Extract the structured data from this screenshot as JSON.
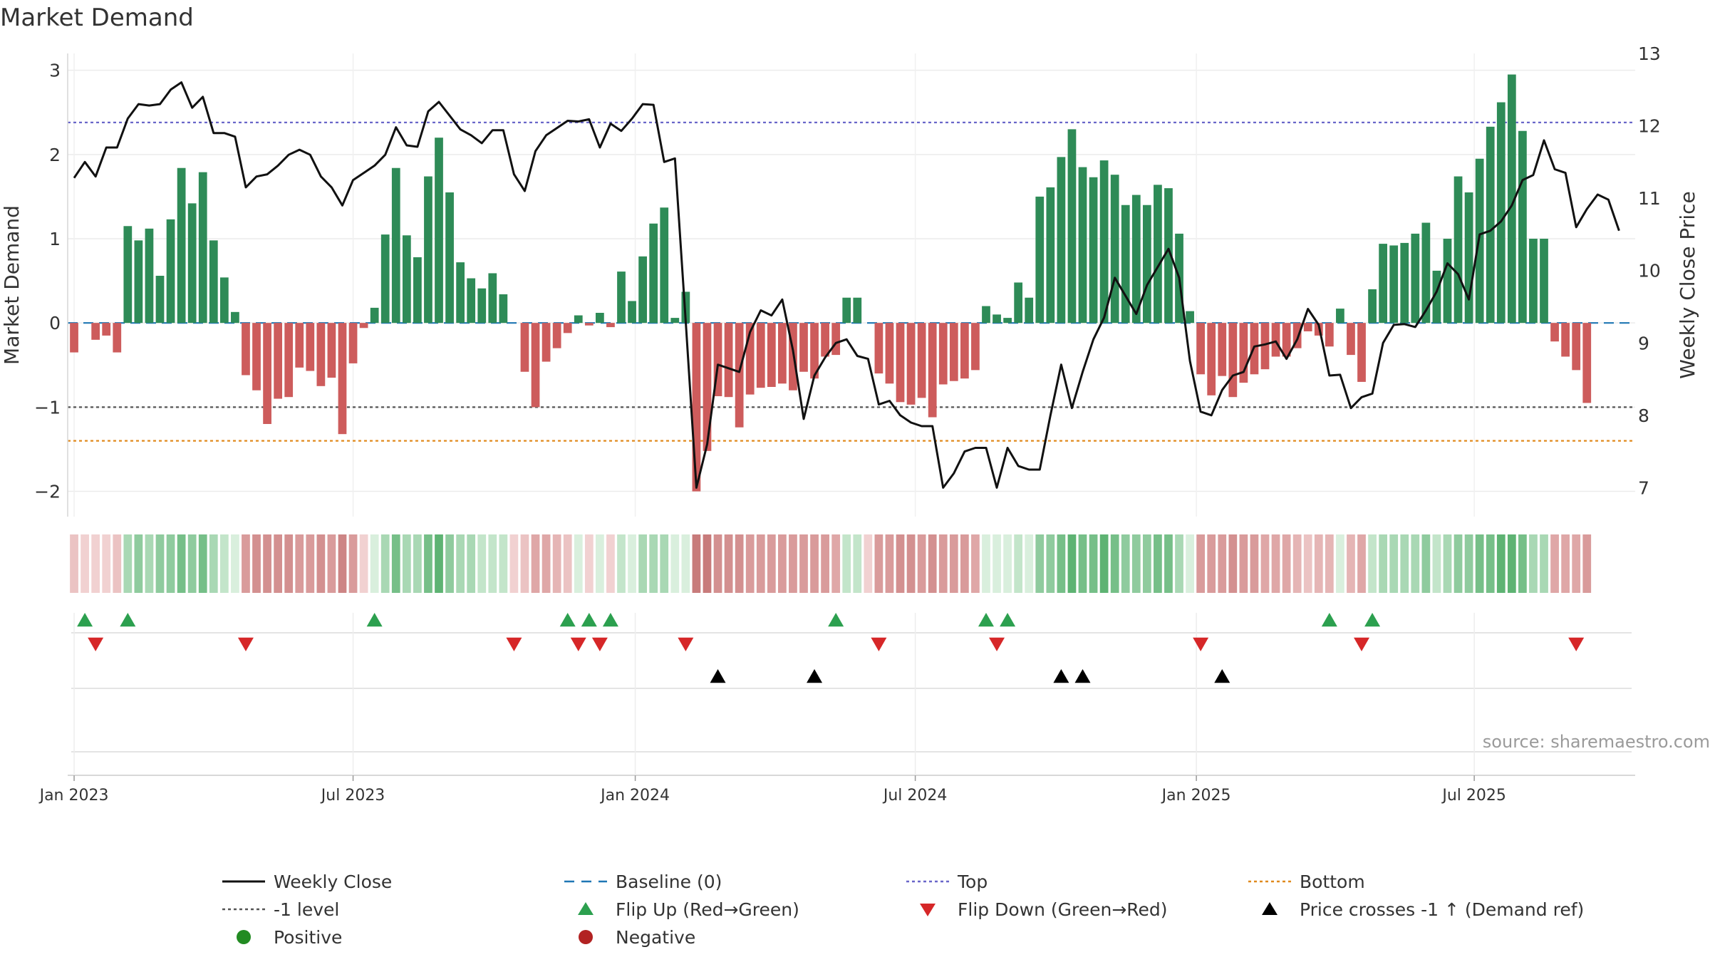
{
  "chart_data": {
    "type": "bar",
    "title": "Market Demand",
    "ylabel": "Market Demand",
    "y2label": "Weekly Close Price",
    "ylim": [
      -2.3,
      3.2
    ],
    "y2lim": [
      6.6,
      13.0
    ],
    "yticks": [
      -2,
      -1,
      0,
      1,
      2,
      3
    ],
    "y2ticks": [
      7,
      8,
      9,
      10,
      11,
      12,
      13
    ],
    "yticklabels": [
      "−2",
      "−1",
      "0",
      "1",
      "2",
      "3"
    ],
    "y2ticklabels": [
      "7",
      "8",
      "9",
      "10",
      "11",
      "12",
      "13"
    ],
    "x_range": [
      -0.6,
      145.5
    ],
    "xticks": [
      {
        "label": "Jan 2023",
        "week": 0
      },
      {
        "label": "Jul 2023",
        "week": 26
      },
      {
        "label": "Jan 2024",
        "week": 52.3
      },
      {
        "label": "Jul 2024",
        "week": 78.4
      },
      {
        "label": "Jan 2025",
        "week": 104.6
      },
      {
        "label": "Jul 2025",
        "week": 130.5
      }
    ],
    "reference_lines": [
      {
        "name": "Baseline (0)",
        "axis": "left",
        "value": 0,
        "color": "#1f77b4",
        "style": "dash"
      },
      {
        "name": "Top",
        "axis": "left",
        "value": 2.38,
        "color": "#6a67c9",
        "style": "dot"
      },
      {
        "name": "-1 level",
        "axis": "left",
        "value": -1,
        "color": "#555555",
        "style": "dot"
      },
      {
        "name": "Bottom",
        "axis": "left",
        "value": -1.4,
        "color": "#e08a1e",
        "style": "dot"
      }
    ],
    "series": [
      {
        "name": "Market Demand",
        "type": "bar",
        "axis": "left",
        "values": [
          -0.35,
          0.0,
          -0.2,
          -0.15,
          -0.35,
          1.15,
          0.98,
          1.12,
          0.56,
          1.23,
          1.84,
          1.42,
          1.79,
          0.98,
          0.54,
          0.13,
          -0.62,
          -0.8,
          -1.2,
          -0.9,
          -0.88,
          -0.53,
          -0.57,
          -0.75,
          -0.65,
          -1.32,
          -0.48,
          -0.06,
          0.18,
          1.05,
          1.84,
          1.04,
          0.78,
          1.74,
          2.2,
          1.55,
          0.72,
          0.53,
          0.41,
          0.59,
          0.34,
          0.0,
          -0.58,
          -1.0,
          -0.46,
          -0.3,
          -0.12,
          0.09,
          -0.03,
          0.12,
          -0.05,
          0.61,
          0.26,
          0.79,
          1.18,
          1.37,
          0.06,
          0.37,
          -2.0,
          -1.52,
          -0.87,
          -0.88,
          -1.24,
          -0.85,
          -0.77,
          -0.76,
          -0.72,
          -0.8,
          -0.58,
          -0.66,
          -0.4,
          -0.38,
          0.3,
          0.3,
          0.0,
          -0.6,
          -0.72,
          -0.94,
          -0.97,
          -0.89,
          -1.12,
          -0.73,
          -0.69,
          -0.66,
          -0.56,
          0.2,
          0.1,
          0.06,
          0.48,
          0.3,
          1.5,
          1.61,
          1.97,
          2.3,
          1.85,
          1.73,
          1.93,
          1.76,
          1.4,
          1.52,
          1.4,
          1.64,
          1.6,
          1.06,
          0.14,
          -0.61,
          -0.86,
          -0.63,
          -0.88,
          -0.71,
          -0.61,
          -0.55,
          -0.4,
          -0.4,
          -0.3,
          -0.1,
          -0.15,
          -0.28,
          0.17,
          -0.38,
          -0.7,
          0.4,
          0.94,
          0.92,
          0.95,
          1.06,
          1.19,
          0.62,
          1.0,
          1.74,
          1.55,
          1.95,
          2.33,
          2.62,
          2.95,
          2.28,
          1.0,
          1.0,
          -0.22,
          -0.4,
          -0.56,
          -0.95
        ]
      },
      {
        "name": "Weekly Close",
        "type": "line",
        "axis": "right",
        "color": "#111111",
        "values": [
          11.28,
          11.5,
          11.3,
          11.7,
          11.7,
          12.1,
          12.3,
          12.28,
          12.3,
          12.5,
          12.6,
          12.25,
          12.4,
          11.9,
          11.9,
          11.85,
          11.15,
          11.3,
          11.33,
          11.45,
          11.6,
          11.67,
          11.6,
          11.3,
          11.15,
          10.9,
          11.25,
          11.35,
          11.45,
          11.6,
          11.98,
          11.73,
          11.71,
          12.2,
          12.33,
          12.14,
          11.95,
          11.87,
          11.76,
          11.94,
          11.94,
          11.33,
          11.1,
          11.65,
          11.87,
          11.97,
          12.07,
          12.06,
          12.09,
          11.7,
          12.03,
          11.93,
          12.1,
          12.3,
          12.29,
          11.5,
          11.55,
          9.3,
          7.0,
          7.6,
          8.7,
          8.65,
          8.6,
          9.15,
          9.45,
          9.38,
          9.6,
          8.9,
          7.95,
          8.55,
          8.8,
          9.0,
          9.05,
          8.82,
          8.78,
          8.15,
          8.2,
          8.0,
          7.9,
          7.85,
          7.85,
          7.0,
          7.2,
          7.5,
          7.55,
          7.55,
          7.0,
          7.55,
          7.3,
          7.25,
          7.25,
          8.0,
          8.7,
          8.1,
          8.6,
          9.05,
          9.35,
          9.9,
          9.65,
          9.4,
          9.8,
          10.05,
          10.3,
          9.9,
          8.75,
          8.05,
          8.0,
          8.35,
          8.55,
          8.6,
          8.95,
          8.98,
          9.02,
          8.78,
          9.05,
          9.47,
          9.25,
          8.55,
          8.56,
          8.1,
          8.25,
          8.3,
          9.0,
          9.25,
          9.26,
          9.22,
          9.45,
          9.71,
          10.1,
          9.95,
          9.6,
          10.5,
          10.55,
          10.68,
          10.9,
          11.25,
          11.32,
          11.8,
          11.4,
          11.35,
          10.6,
          10.85,
          11.05,
          10.98,
          10.55
        ]
      }
    ],
    "strip_shades": [
      2,
      1,
      1,
      1,
      2,
      3,
      4,
      3,
      4,
      4,
      5,
      4,
      5,
      3,
      2,
      1,
      5,
      6,
      6,
      6,
      6,
      5,
      5,
      6,
      5,
      7,
      5,
      1,
      1,
      3,
      5,
      3,
      3,
      5,
      6,
      4,
      3,
      3,
      2,
      2,
      2,
      1,
      2,
      4,
      4,
      3,
      2,
      1,
      1,
      1,
      1,
      2,
      1,
      3,
      3,
      3,
      1,
      1,
      8,
      8,
      6,
      6,
      6,
      5,
      5,
      5,
      5,
      5,
      5,
      5,
      5,
      4,
      2,
      2,
      1,
      5,
      5,
      6,
      6,
      5,
      6,
      5,
      5,
      5,
      4,
      1,
      1,
      1,
      2,
      1,
      4,
      4,
      5,
      6,
      5,
      5,
      6,
      5,
      4,
      4,
      4,
      5,
      5,
      3,
      1,
      5,
      5,
      5,
      6,
      5,
      5,
      4,
      4,
      4,
      3,
      2,
      3,
      3,
      1,
      3,
      4,
      2,
      3,
      3,
      3,
      3,
      4,
      2,
      3,
      4,
      4,
      5,
      5,
      6,
      6,
      5,
      3,
      3,
      4,
      4,
      4,
      5
    ],
    "flip_up_weeks": [
      1,
      5,
      28,
      46,
      48,
      50,
      71,
      85,
      87,
      117,
      121
    ],
    "flip_down_weeks": [
      2,
      16,
      41,
      47,
      49,
      57,
      75,
      86,
      105,
      120,
      140
    ],
    "price_cross_weeks": [
      60,
      69,
      92,
      94,
      107
    ],
    "source_text": "source: sharemaestro.com",
    "legend": {
      "placement": "bottom",
      "items": [
        {
          "label": "Weekly Close",
          "marker": "solid-line",
          "color": "#111111"
        },
        {
          "label": "Baseline (0)",
          "marker": "dash-line",
          "color": "#1f77b4"
        },
        {
          "label": "Top",
          "marker": "dot-line",
          "color": "#6a67c9"
        },
        {
          "label": "Bottom",
          "marker": "dot-line",
          "color": "#e08a1e"
        },
        {
          "label": "-1 level",
          "marker": "dot-line",
          "color": "#555555"
        },
        {
          "label": "Flip Up (Red→Green)",
          "marker": "triangle-up",
          "color": "#2ca04f"
        },
        {
          "label": "Flip Down (Green→Red)",
          "marker": "triangle-down",
          "color": "#d62728"
        },
        {
          "label": "Price crosses -1 ↑ (Demand ref)",
          "marker": "triangle-up",
          "color": "#000000"
        },
        {
          "label": "Positive",
          "marker": "circle",
          "color": "#228b22"
        },
        {
          "label": "Negative",
          "marker": "circle",
          "color": "#b22222"
        }
      ]
    },
    "colors": {
      "positive_bar": "#2e8b57",
      "negative_bar": "#cd5c5c",
      "green_scale": [
        "#d9efdd",
        "#c3e5ca",
        "#a9d8b4",
        "#8fcb9e",
        "#76bf88",
        "#5eb373",
        "#4aa862",
        "#3a9e54"
      ],
      "red_scale": [
        "#f1d1d1",
        "#ebc3c3",
        "#e5b5b5",
        "#dfa7a7",
        "#d99b9b",
        "#d39090",
        "#cd8585",
        "#c87b7b"
      ]
    }
  }
}
